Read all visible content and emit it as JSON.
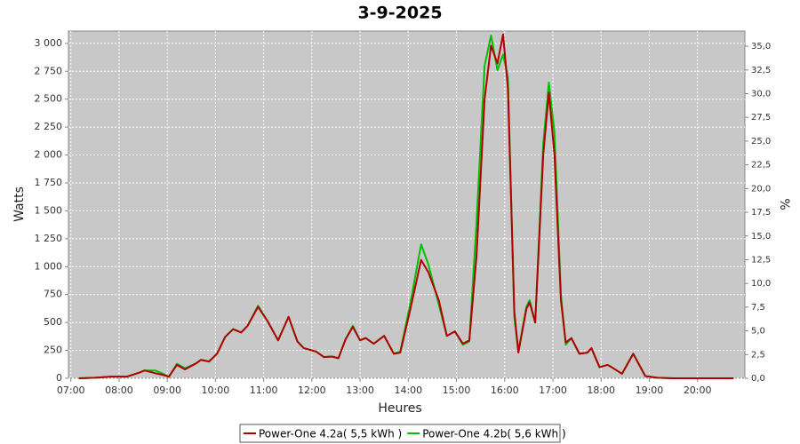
{
  "chart_data": {
    "type": "line",
    "title": "3-9-2025",
    "xlabel": "Heures",
    "ylabel": "Watts",
    "y2label": "%",
    "x": [
      "07:10",
      "07:30",
      "07:50",
      "08:10",
      "08:25",
      "08:32",
      "08:45",
      "08:55",
      "09:02",
      "09:12",
      "09:22",
      "09:35",
      "09:42",
      "09:52",
      "10:02",
      "10:12",
      "10:22",
      "10:32",
      "10:40",
      "10:53",
      "11:05",
      "11:18",
      "11:31",
      "11:42",
      "11:50",
      "12:05",
      "12:15",
      "12:25",
      "12:33",
      "12:42",
      "12:51",
      "13:00",
      "13:07",
      "13:17",
      "13:30",
      "13:42",
      "13:50",
      "14:02",
      "14:16",
      "14:25",
      "14:38",
      "14:48",
      "14:58",
      "15:08",
      "15:16",
      "15:25",
      "15:35",
      "15:43",
      "15:51",
      "15:58",
      "16:04",
      "16:12",
      "16:17",
      "16:27",
      "16:31",
      "16:38",
      "16:48",
      "16:55",
      "17:02",
      "17:10",
      "17:16",
      "17:23",
      "17:33",
      "17:43",
      "17:48",
      "17:58",
      "18:08",
      "18:13",
      "18:26",
      "18:40",
      "18:55",
      "19:10",
      "19:30",
      "20:00",
      "20:45"
    ],
    "series": [
      {
        "name": "Power-One 4.2a( 5,5 kWh )",
        "color": "#b00000",
        "values": [
          0,
          5,
          15,
          15,
          50,
          70,
          45,
          30,
          15,
          120,
          80,
          130,
          165,
          150,
          220,
          370,
          440,
          410,
          470,
          640,
          510,
          340,
          550,
          330,
          270,
          240,
          190,
          195,
          180,
          350,
          460,
          340,
          360,
          310,
          380,
          220,
          230,
          600,
          1060,
          950,
          700,
          380,
          420,
          310,
          340,
          1100,
          2500,
          2980,
          2820,
          3080,
          2600,
          600,
          230,
          620,
          680,
          500,
          2000,
          2560,
          2000,
          700,
          320,
          360,
          220,
          230,
          270,
          100,
          120,
          100,
          40,
          220,
          20,
          5,
          0,
          0,
          0
        ]
      },
      {
        "name": "Power-One 4.2b( 5,6 kWh )",
        "color": "#00c000",
        "values": [
          0,
          5,
          15,
          15,
          50,
          70,
          70,
          40,
          10,
          130,
          90,
          130,
          165,
          150,
          220,
          370,
          440,
          410,
          470,
          650,
          510,
          340,
          550,
          330,
          270,
          240,
          190,
          195,
          180,
          350,
          470,
          340,
          360,
          310,
          380,
          220,
          240,
          650,
          1200,
          1020,
          660,
          380,
          420,
          300,
          330,
          1400,
          2800,
          3070,
          2760,
          2900,
          2700,
          550,
          240,
          640,
          700,
          500,
          2100,
          2650,
          2200,
          750,
          300,
          360,
          220,
          230,
          270,
          100,
          120,
          100,
          40,
          220,
          20,
          5,
          0,
          0,
          0
        ]
      }
    ],
    "xlim": [
      "06:57",
      "20:59"
    ],
    "xticks": [
      "07:00",
      "08:00",
      "09:00",
      "10:00",
      "11:00",
      "12:00",
      "13:00",
      "14:00",
      "15:00",
      "16:00",
      "17:00",
      "18:00",
      "19:00",
      "20:00"
    ],
    "ylim": [
      0,
      3110
    ],
    "yticks": [
      0,
      250,
      500,
      750,
      {
        "value": 1000,
        "label": "1 000"
      },
      {
        "value": 1250,
        "label": "1 250"
      },
      {
        "value": 1500,
        "label": "1 500"
      },
      {
        "value": 1750,
        "label": "1 750"
      },
      {
        "value": 2000,
        "label": "2 000"
      },
      {
        "value": 2250,
        "label": "2 250"
      },
      {
        "value": 2500,
        "label": "2 500"
      },
      {
        "value": 2750,
        "label": "2 750"
      },
      {
        "value": 3000,
        "label": "3 000"
      }
    ],
    "y2lim": [
      0,
      36.6
    ],
    "y2ticks": [
      {
        "value": 0,
        "label": "0,0"
      },
      {
        "value": 2.5,
        "label": "2,5"
      },
      {
        "value": 5,
        "label": "5,0"
      },
      {
        "value": 7.5,
        "label": "7,5"
      },
      {
        "value": 10,
        "label": "10,0"
      },
      {
        "value": 12.5,
        "label": "12,5"
      },
      {
        "value": 15,
        "label": "15,0"
      },
      {
        "value": 17.5,
        "label": "17,5"
      },
      {
        "value": 20,
        "label": "20,0"
      },
      {
        "value": 22.5,
        "label": "22,5"
      },
      {
        "value": 25,
        "label": "25,0"
      },
      {
        "value": 27.5,
        "label": "27,5"
      },
      {
        "value": 30,
        "label": "30,0"
      },
      {
        "value": 32.5,
        "label": "32,5"
      },
      {
        "value": 35,
        "label": "35,0"
      }
    ],
    "grid": true
  }
}
